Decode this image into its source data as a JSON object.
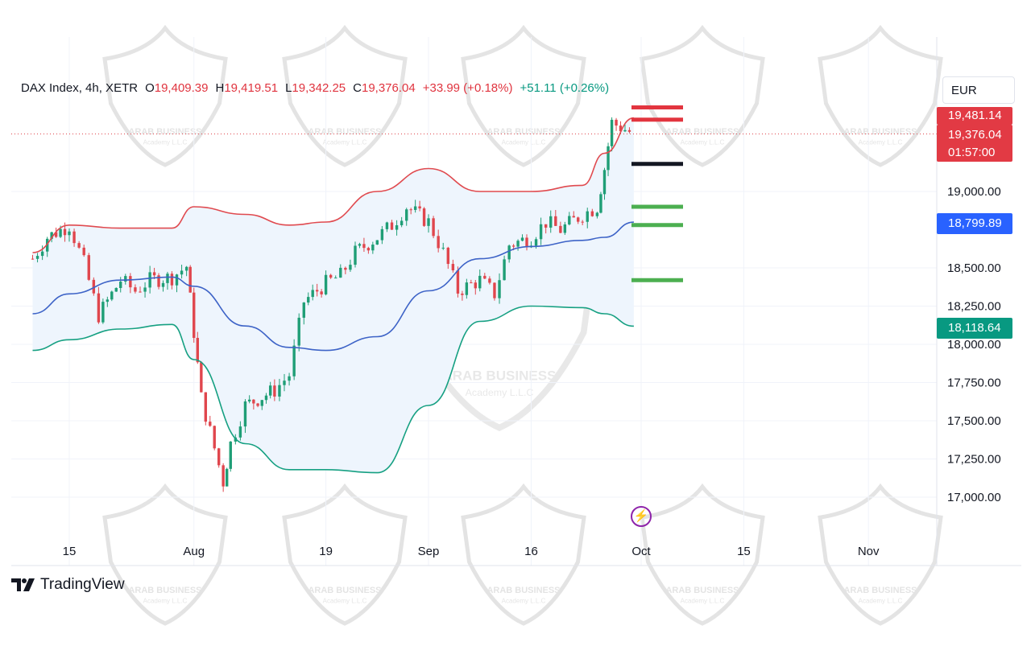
{
  "header": {
    "symbol": "DAX Index, 4h, XETR",
    "open_label": "O",
    "open": "19,409.39",
    "high_label": "H",
    "high": "19,419.51",
    "low_label": "L",
    "low": "19,342.25",
    "close_label": "C",
    "close": "19,376.04",
    "change": "+33.99 (+0.18%)",
    "change2": "+51.11 (+0.26%)"
  },
  "currency": "EUR",
  "price_tags": {
    "upper_band": "19,481.14",
    "last_price": "19,376.04",
    "countdown": "01:57:00",
    "middle_band": "18,799.89",
    "lower_band": "18,118.64"
  },
  "branding": {
    "platform": "TradingView",
    "watermark_name": "ARAB BUSINESS",
    "watermark_sub": "Academy L.L.C"
  },
  "colors": {
    "upper_band": "#e04a4f",
    "middle_band": "#3d63c7",
    "lower_band": "#16a082",
    "band_fill": "#eef5fd",
    "candle_up": "#1f9e76",
    "candle_down": "#e0464d",
    "level_red": "#e2353f",
    "level_black": "#131722",
    "level_green": "#4caf50"
  },
  "chart_data": {
    "type": "candlestick",
    "indicator": "bollinger_bands",
    "y_axis_ticks": [
      17000,
      17250,
      17500,
      17750,
      18000,
      18250,
      18500,
      19000
    ],
    "y_tick_labels": [
      "17,000.00",
      "17,250.00",
      "17,500.00",
      "17,750.00",
      "18,000.00",
      "18,250.00",
      "18,500.00",
      "19,000.00"
    ],
    "x_axis_ticks": [
      {
        "label": "15",
        "date": "2024-07-15"
      },
      {
        "label": "Aug",
        "date": "2024-08-01"
      },
      {
        "label": "19",
        "date": "2024-08-19"
      },
      {
        "label": "Sep",
        "date": "2024-09-02"
      },
      {
        "label": "16",
        "date": "2024-09-16"
      },
      {
        "label": "Oct",
        "date": "2024-10-01"
      },
      {
        "label": "15",
        "date": "2024-10-15"
      },
      {
        "label": "Nov",
        "date": "2024-11-01"
      }
    ],
    "last_price": 19376.04,
    "price_series": [
      {
        "date": "2024-07-10",
        "close": 18560
      },
      {
        "date": "2024-07-12",
        "close": 18700
      },
      {
        "date": "2024-07-15",
        "close": 18780
      },
      {
        "date": "2024-07-17",
        "close": 18530
      },
      {
        "date": "2024-07-19",
        "close": 18190
      },
      {
        "date": "2024-07-22",
        "close": 18420
      },
      {
        "date": "2024-07-24",
        "close": 18350
      },
      {
        "date": "2024-07-26",
        "close": 18420
      },
      {
        "date": "2024-07-29",
        "close": 18440
      },
      {
        "date": "2024-07-31",
        "close": 18510
      },
      {
        "date": "2024-08-01",
        "close": 18080
      },
      {
        "date": "2024-08-02",
        "close": 17650
      },
      {
        "date": "2024-08-05",
        "close": 17100
      },
      {
        "date": "2024-08-06",
        "close": 17350
      },
      {
        "date": "2024-08-08",
        "close": 17600
      },
      {
        "date": "2024-08-12",
        "close": 17700
      },
      {
        "date": "2024-08-14",
        "close": 17800
      },
      {
        "date": "2024-08-16",
        "close": 18280
      },
      {
        "date": "2024-08-19",
        "close": 18400
      },
      {
        "date": "2024-08-21",
        "close": 18450
      },
      {
        "date": "2024-08-23",
        "close": 18600
      },
      {
        "date": "2024-08-26",
        "close": 18700
      },
      {
        "date": "2024-08-28",
        "close": 18780
      },
      {
        "date": "2024-08-30",
        "close": 18900
      },
      {
        "date": "2024-09-02",
        "close": 18800
      },
      {
        "date": "2024-09-04",
        "close": 18600
      },
      {
        "date": "2024-09-06",
        "close": 18350
      },
      {
        "date": "2024-09-09",
        "close": 18420
      },
      {
        "date": "2024-09-11",
        "close": 18330
      },
      {
        "date": "2024-09-13",
        "close": 18650
      },
      {
        "date": "2024-09-16",
        "close": 18700
      },
      {
        "date": "2024-09-18",
        "close": 18800
      },
      {
        "date": "2024-09-20",
        "close": 18750
      },
      {
        "date": "2024-09-23",
        "close": 18850
      },
      {
        "date": "2024-09-25",
        "close": 18900
      },
      {
        "date": "2024-09-26",
        "close": 19150
      },
      {
        "date": "2024-09-27",
        "close": 19450
      },
      {
        "date": "2024-09-30",
        "close": 19376
      }
    ],
    "bollinger": {
      "upper": [
        {
          "date": "2024-07-10",
          "value": 18600
        },
        {
          "date": "2024-07-15",
          "value": 18780
        },
        {
          "date": "2024-07-22",
          "value": 18760
        },
        {
          "date": "2024-07-29",
          "value": 18760
        },
        {
          "date": "2024-08-01",
          "value": 18900
        },
        {
          "date": "2024-08-08",
          "value": 18850
        },
        {
          "date": "2024-08-14",
          "value": 18780
        },
        {
          "date": "2024-08-19",
          "value": 18800
        },
        {
          "date": "2024-08-26",
          "value": 19000
        },
        {
          "date": "2024-09-02",
          "value": 19150
        },
        {
          "date": "2024-09-09",
          "value": 19000
        },
        {
          "date": "2024-09-16",
          "value": 19000
        },
        {
          "date": "2024-09-23",
          "value": 19040
        },
        {
          "date": "2024-09-26",
          "value": 19250
        },
        {
          "date": "2024-09-30",
          "value": 19481.14
        }
      ],
      "middle": [
        {
          "date": "2024-07-10",
          "value": 18200
        },
        {
          "date": "2024-07-15",
          "value": 18330
        },
        {
          "date": "2024-07-22",
          "value": 18420
        },
        {
          "date": "2024-07-29",
          "value": 18440
        },
        {
          "date": "2024-08-01",
          "value": 18380
        },
        {
          "date": "2024-08-08",
          "value": 18120
        },
        {
          "date": "2024-08-14",
          "value": 17980
        },
        {
          "date": "2024-08-19",
          "value": 17960
        },
        {
          "date": "2024-08-26",
          "value": 18050
        },
        {
          "date": "2024-09-02",
          "value": 18350
        },
        {
          "date": "2024-09-09",
          "value": 18560
        },
        {
          "date": "2024-09-16",
          "value": 18640
        },
        {
          "date": "2024-09-23",
          "value": 18680
        },
        {
          "date": "2024-09-26",
          "value": 18700
        },
        {
          "date": "2024-09-30",
          "value": 18799.89
        }
      ],
      "lower": [
        {
          "date": "2024-07-10",
          "value": 17960
        },
        {
          "date": "2024-07-15",
          "value": 18030
        },
        {
          "date": "2024-07-22",
          "value": 18100
        },
        {
          "date": "2024-07-29",
          "value": 18130
        },
        {
          "date": "2024-08-01",
          "value": 17900
        },
        {
          "date": "2024-08-08",
          "value": 17350
        },
        {
          "date": "2024-08-14",
          "value": 17180
        },
        {
          "date": "2024-08-19",
          "value": 17180
        },
        {
          "date": "2024-08-26",
          "value": 17160
        },
        {
          "date": "2024-09-02",
          "value": 17600
        },
        {
          "date": "2024-09-09",
          "value": 18150
        },
        {
          "date": "2024-09-16",
          "value": 18250
        },
        {
          "date": "2024-09-23",
          "value": 18240
        },
        {
          "date": "2024-09-26",
          "value": 18200
        },
        {
          "date": "2024-09-30",
          "value": 18118.64
        }
      ]
    },
    "drawn_levels": [
      {
        "price": 19550,
        "color": "red"
      },
      {
        "price": 19470,
        "color": "red"
      },
      {
        "price": 19180,
        "color": "black"
      },
      {
        "price": 18900,
        "color": "green"
      },
      {
        "price": 18780,
        "color": "green"
      },
      {
        "price": 18420,
        "color": "green"
      }
    ]
  }
}
